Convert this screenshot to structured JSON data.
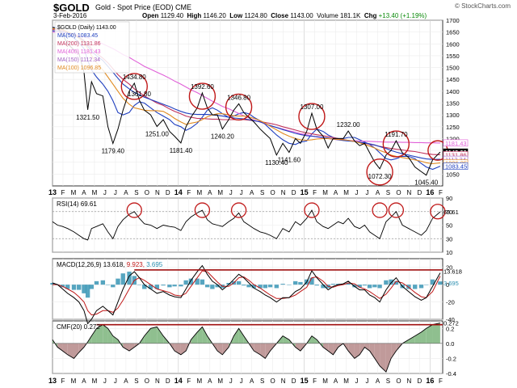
{
  "header": {
    "ticker": "$GOLD",
    "description": "Gold - Spot Price (EOD)  CME",
    "date": "3-Feb-2016",
    "open_label": "Open",
    "open": "1129.40",
    "high_label": "High",
    "high": "1146.20",
    "low_label": "Low",
    "low": "1124.80",
    "close_label": "Close",
    "close": "1143.00",
    "volume": "Volume 181.1K",
    "chg_label": "Chg",
    "chg": "+13.40 (+1.19%)",
    "watermark": "© StockCharts.com"
  },
  "legend": {
    "price": "$GOLD (Daily) 1143.00",
    "ma50": "MA(50) 1083.45",
    "ma200": "MA(200) 1131.86",
    "ma400": "MA(400) 1181.43",
    "ma150": "MA(150) 1112.34",
    "ma100": "MA(100) 1096.85"
  },
  "colors": {
    "price": "#000000",
    "ma50": "#1f3fbf",
    "ma200": "#c0305a",
    "ma400": "#e060d8",
    "ma150": "#a060c0",
    "ma100": "#e08a20",
    "circle": "#c01818",
    "rsi": "#000000",
    "macd": "#000000",
    "signal": "#c01818",
    "hist": "#2c8fb0",
    "cmf_pos": "#8fbf8f",
    "cmf_neg": "#c09a9a",
    "resistance": "#a01010"
  },
  "x_axis": {
    "top": [
      "13",
      "F",
      "M",
      "A",
      "M",
      "J",
      "J",
      "A",
      "S",
      "O",
      "N",
      "D",
      "14",
      "F",
      "M",
      "A",
      "M",
      "J",
      "J",
      "A",
      "S",
      "O",
      "N",
      "D",
      "15",
      "F",
      "M",
      "A",
      "M",
      "J",
      "J",
      "A",
      "S",
      "O",
      "N",
      "D",
      "16",
      "F"
    ],
    "bottom": [
      "13",
      "F",
      "M",
      "A",
      "M",
      "J",
      "J",
      "A",
      "S",
      "O",
      "N",
      "D",
      "14",
      "F",
      "M",
      "A",
      "M",
      "J",
      "J",
      "A",
      "S",
      "O",
      "N",
      "D",
      "15",
      "F",
      "M",
      "A",
      "M",
      "J",
      "J",
      "A",
      "S",
      "O",
      "N",
      "D",
      "16",
      "F"
    ]
  },
  "panels": {
    "rsi_title": "RSI(14) 69.61",
    "rsi_last": "69.61",
    "macd_title_a": "MACD(12,26,9) 13.618,",
    "macd_title_b": "9.923,",
    "macd_title_c": "3.695",
    "macd_last_a": "13.618",
    "macd_last_b": "3.695",
    "cmf_title": "CMF(20) 0.272",
    "cmf_last": "0.272"
  },
  "last_labels": {
    "ma400": "1181.43",
    "close": "1143.00",
    "ma200": "1131.86",
    "ma150": "1112.34",
    "ma100": "1096.85",
    "ma50": "1083.45"
  },
  "chart_data": [
    {
      "type": "line",
      "title": "$GOLD Gold - Spot Price (EOD) CME",
      "x_range": [
        "2013-01",
        "2016-02"
      ],
      "ylim": [
        1000,
        1700
      ],
      "y_ticks": [
        1050,
        1100,
        1150,
        1200,
        1250,
        1300,
        1350,
        1400,
        1450,
        1500,
        1550,
        1600,
        1650,
        1700
      ],
      "x": [
        2013.0,
        2013.04,
        2013.08,
        2013.12,
        2013.17,
        2013.21,
        2013.25,
        2013.28,
        2013.31,
        2013.35,
        2013.4,
        2013.44,
        2013.48,
        2013.52,
        2013.56,
        2013.61,
        2013.65,
        2013.69,
        2013.73,
        2013.78,
        2013.83,
        2013.88,
        2013.93,
        2013.97,
        2014.02,
        2014.06,
        2014.1,
        2014.15,
        2014.19,
        2014.23,
        2014.27,
        2014.31,
        2014.35,
        2014.4,
        2014.44,
        2014.48,
        2014.52,
        2014.56,
        2014.6,
        2014.65,
        2014.69,
        2014.73,
        2014.78,
        2014.83,
        2014.88,
        2014.93,
        2014.97,
        2015.02,
        2015.06,
        2015.1,
        2015.15,
        2015.19,
        2015.23,
        2015.27,
        2015.31,
        2015.35,
        2015.4,
        2015.44,
        2015.48,
        2015.52,
        2015.56,
        2015.6,
        2015.65,
        2015.69,
        2015.73,
        2015.78,
        2015.83,
        2015.88,
        2015.93,
        2015.97,
        2016.02,
        2016.08
      ],
      "series": [
        {
          "name": "$GOLD (Daily)",
          "values": [
            1670,
            1665,
            1640,
            1600,
            1575,
            1560,
            1480,
            1321.5,
            1440,
            1390,
            1380,
            1250,
            1179.4,
            1240,
            1320,
            1400,
            1434,
            1361.8,
            1320,
            1300,
            1251,
            1280,
            1230,
            1210,
            1181.4,
            1250,
            1290,
            1330,
            1392.6,
            1330,
            1300,
            1300,
            1240.2,
            1280,
            1320,
            1346.8,
            1310,
            1290,
            1270,
            1240,
            1220,
            1200,
            1130.4,
            1180,
            1141.6,
            1200,
            1180,
            1230,
            1307,
            1240,
            1210,
            1160,
            1200,
            1200,
            1200,
            1232,
            1190,
            1170,
            1180,
            1140,
            1100,
            1072.3,
            1130,
            1150,
            1191,
            1140,
            1120,
            1080,
            1060,
            1045.4,
            1110,
            1143
          ]
        },
        {
          "name": "MA(50)",
          "values": [
            1670,
            1668,
            1660,
            1645,
            1625,
            1605,
            1580,
            1530,
            1490,
            1460,
            1430,
            1400,
            1360,
            1310,
            1300,
            1310,
            1340,
            1355,
            1350,
            1330,
            1310,
            1295,
            1280,
            1260,
            1250,
            1235,
            1245,
            1265,
            1290,
            1320,
            1330,
            1320,
            1305,
            1290,
            1295,
            1305,
            1310,
            1305,
            1290,
            1275,
            1260,
            1240,
            1215,
            1195,
            1180,
            1175,
            1185,
            1190,
            1220,
            1240,
            1230,
            1215,
            1205,
            1200,
            1200,
            1205,
            1205,
            1195,
            1185,
            1175,
            1160,
            1140,
            1115,
            1110,
            1115,
            1125,
            1125,
            1115,
            1095,
            1080,
            1070,
            1083.45
          ]
        },
        {
          "name": "MA(200)",
          "values": [
            1660,
            1660,
            1655,
            1650,
            1640,
            1630,
            1615,
            1600,
            1580,
            1560,
            1540,
            1520,
            1495,
            1470,
            1450,
            1430,
            1410,
            1395,
            1380,
            1365,
            1350,
            1340,
            1325,
            1315,
            1305,
            1295,
            1290,
            1285,
            1285,
            1283,
            1282,
            1282,
            1280,
            1280,
            1280,
            1280,
            1280,
            1278,
            1275,
            1272,
            1268,
            1264,
            1258,
            1250,
            1243,
            1236,
            1230,
            1224,
            1220,
            1216,
            1212,
            1208,
            1204,
            1200,
            1196,
            1192,
            1188,
            1184,
            1180,
            1176,
            1172,
            1167,
            1162,
            1158,
            1155,
            1152,
            1148,
            1145,
            1140,
            1136,
            1133,
            1131.86
          ]
        },
        {
          "name": "MA(400)",
          "values": [
            1650,
            1648,
            1646,
            1644,
            1640,
            1635,
            1630,
            1625,
            1618,
            1610,
            1600,
            1590,
            1580,
            1568,
            1555,
            1543,
            1530,
            1518,
            1505,
            1493,
            1480,
            1468,
            1455,
            1443,
            1430,
            1418,
            1406,
            1394,
            1382,
            1370,
            1358,
            1347,
            1336,
            1326,
            1316,
            1306,
            1296,
            1287,
            1278,
            1270,
            1262,
            1254,
            1247,
            1240,
            1233,
            1227,
            1221,
            1216,
            1211,
            1207,
            1203,
            1200,
            1197,
            1195,
            1193,
            1192,
            1191,
            1190,
            1189,
            1188,
            1187,
            1186,
            1185,
            1185,
            1185,
            1184,
            1184,
            1183,
            1183,
            1182,
            1182,
            1181.43
          ]
        },
        {
          "name": "MA(150)",
          "values": [
            1655,
            1654,
            1650,
            1644,
            1636,
            1625,
            1610,
            1590,
            1570,
            1550,
            1530,
            1505,
            1480,
            1455,
            1430,
            1410,
            1395,
            1385,
            1375,
            1365,
            1355,
            1345,
            1335,
            1325,
            1315,
            1308,
            1304,
            1302,
            1302,
            1302,
            1300,
            1298,
            1295,
            1290,
            1287,
            1285,
            1283,
            1280,
            1276,
            1270,
            1263,
            1255,
            1247,
            1238,
            1230,
            1222,
            1217,
            1212,
            1210,
            1208,
            1205,
            1202,
            1198,
            1195,
            1192,
            1190,
            1188,
            1185,
            1182,
            1178,
            1173,
            1166,
            1158,
            1150,
            1143,
            1136,
            1130,
            1124,
            1118,
            1114,
            1112,
            1112.34
          ]
        },
        {
          "name": "MA(100)",
          "values": [
            1665,
            1664,
            1660,
            1652,
            1640,
            1625,
            1605,
            1580,
            1550,
            1520,
            1490,
            1460,
            1430,
            1400,
            1370,
            1345,
            1330,
            1325,
            1320,
            1318,
            1318,
            1315,
            1300,
            1285,
            1270,
            1260,
            1265,
            1270,
            1280,
            1292,
            1300,
            1305,
            1305,
            1300,
            1296,
            1295,
            1295,
            1292,
            1285,
            1276,
            1265,
            1252,
            1237,
            1222,
            1210,
            1200,
            1195,
            1193,
            1195,
            1198,
            1200,
            1200,
            1198,
            1196,
            1195,
            1193,
            1188,
            1182,
            1175,
            1168,
            1160,
            1150,
            1140,
            1130,
            1125,
            1120,
            1115,
            1110,
            1104,
            1098,
            1094,
            1096.85
          ]
        }
      ],
      "annotations": [
        "1434.80",
        "1361.80",
        "1392.60",
        "1346.80",
        "1307.00",
        "1232.00",
        "1191.70",
        "1321.50",
        "1179.40",
        "1251.00",
        "1181.40",
        "1240.20",
        "1130.40",
        "1141.60",
        "1072.30",
        "1045.40"
      ]
    },
    {
      "type": "line",
      "title": "RSI(14) 69.61",
      "ylim": [
        10,
        90
      ],
      "y_ticks": [
        10,
        30,
        50,
        70,
        90
      ],
      "series": [
        {
          "name": "RSI(14)",
          "values": [
            55,
            50,
            48,
            45,
            40,
            35,
            30,
            28,
            45,
            48,
            52,
            40,
            30,
            48,
            58,
            66,
            70,
            60,
            52,
            50,
            45,
            50,
            48,
            47,
            42,
            55,
            62,
            68,
            72,
            58,
            52,
            50,
            48,
            55,
            60,
            68,
            55,
            50,
            45,
            40,
            38,
            35,
            30,
            45,
            40,
            55,
            50,
            60,
            72,
            55,
            48,
            45,
            50,
            55,
            52,
            60,
            48,
            45,
            50,
            40,
            35,
            30,
            55,
            62,
            70,
            50,
            45,
            40,
            35,
            42,
            60,
            69.61
          ]
        }
      ]
    },
    {
      "type": "line",
      "title": "MACD(12,26,9) 13.618, 9.923, 3.695",
      "ylim": [
        -40,
        30
      ],
      "y_ticks": [
        -40,
        -20,
        0,
        20
      ],
      "series": [
        {
          "name": "MACD",
          "values": [
            2,
            0,
            -5,
            -10,
            -15,
            -20,
            -30,
            -45,
            -40,
            -30,
            -25,
            -30,
            -35,
            -20,
            -5,
            10,
            15,
            8,
            0,
            -5,
            -10,
            -8,
            -12,
            -14,
            -15,
            -5,
            5,
            15,
            22,
            12,
            4,
            0,
            -6,
            0,
            6,
            12,
            8,
            2,
            -4,
            -8,
            -12,
            -15,
            -20,
            -15,
            -15,
            -8,
            -5,
            3,
            16,
            8,
            0,
            -6,
            -2,
            0,
            1,
            4,
            -2,
            -6,
            -6,
            -12,
            -15,
            -20,
            -6,
            2,
            8,
            -2,
            -8,
            -14,
            -18,
            -15,
            -2,
            13.618
          ]
        },
        {
          "name": "Signal",
          "values": [
            0,
            0,
            -2,
            -5,
            -9,
            -14,
            -20,
            -30,
            -35,
            -34,
            -30,
            -30,
            -32,
            -27,
            -18,
            -5,
            5,
            8,
            5,
            0,
            -5,
            -7,
            -9,
            -12,
            -13,
            -10,
            -2,
            8,
            16,
            15,
            9,
            3,
            -2,
            -2,
            2,
            8,
            9,
            5,
            0,
            -4,
            -8,
            -12,
            -16,
            -16,
            -15,
            -12,
            -8,
            -3,
            8,
            9,
            4,
            -2,
            -3,
            -1,
            0,
            2,
            1,
            -3,
            -5,
            -8,
            -12,
            -16,
            -11,
            -4,
            4,
            2,
            -3,
            -9,
            -14,
            -15,
            -8,
            9.923
          ]
        },
        {
          "name": "Histogram",
          "values": [
            2,
            0,
            -3,
            -5,
            -6,
            -6,
            -10,
            -15,
            -5,
            4,
            5,
            0,
            -3,
            7,
            13,
            15,
            10,
            0,
            -5,
            -5,
            -5,
            -1,
            -3,
            -2,
            -2,
            5,
            7,
            7,
            6,
            -3,
            -5,
            -3,
            -4,
            2,
            4,
            4,
            -1,
            -3,
            -4,
            -4,
            -4,
            -3,
            -4,
            1,
            0,
            4,
            3,
            6,
            8,
            -1,
            -4,
            -4,
            1,
            1,
            1,
            2,
            -3,
            -3,
            -1,
            -4,
            -3,
            -4,
            5,
            6,
            4,
            -4,
            -5,
            -5,
            -4,
            0,
            6,
            3.695
          ]
        }
      ]
    },
    {
      "type": "area",
      "title": "CMF(20) 0.272",
      "ylim": [
        -0.4,
        0.3
      ],
      "y_ticks": [
        -0.4,
        -0.2,
        0.0,
        0.2
      ],
      "series": [
        {
          "name": "CMF(20)",
          "values": [
            0.05,
            -0.05,
            -0.1,
            -0.15,
            -0.2,
            -0.12,
            -0.05,
            0.02,
            0.1,
            0.2,
            0.25,
            0.2,
            0.1,
            0.05,
            -0.05,
            -0.1,
            -0.05,
            0.0,
            0.1,
            0.2,
            0.22,
            0.1,
            0.0,
            -0.1,
            -0.15,
            -0.1,
            0.05,
            0.15,
            0.22,
            0.1,
            0.0,
            -0.1,
            -0.15,
            -0.05,
            0.1,
            0.2,
            0.1,
            0.0,
            -0.1,
            -0.15,
            -0.2,
            -0.1,
            0.0,
            0.1,
            0.05,
            -0.05,
            -0.1,
            0.0,
            0.1,
            0.05,
            -0.05,
            -0.1,
            -0.15,
            -0.05,
            0.0,
            -0.1,
            -0.2,
            -0.15,
            -0.05,
            -0.1,
            -0.2,
            -0.3,
            -0.38,
            -0.2,
            -0.1,
            0.0,
            0.05,
            0.1,
            0.15,
            0.2,
            0.25,
            0.272
          ]
        }
      ]
    }
  ]
}
